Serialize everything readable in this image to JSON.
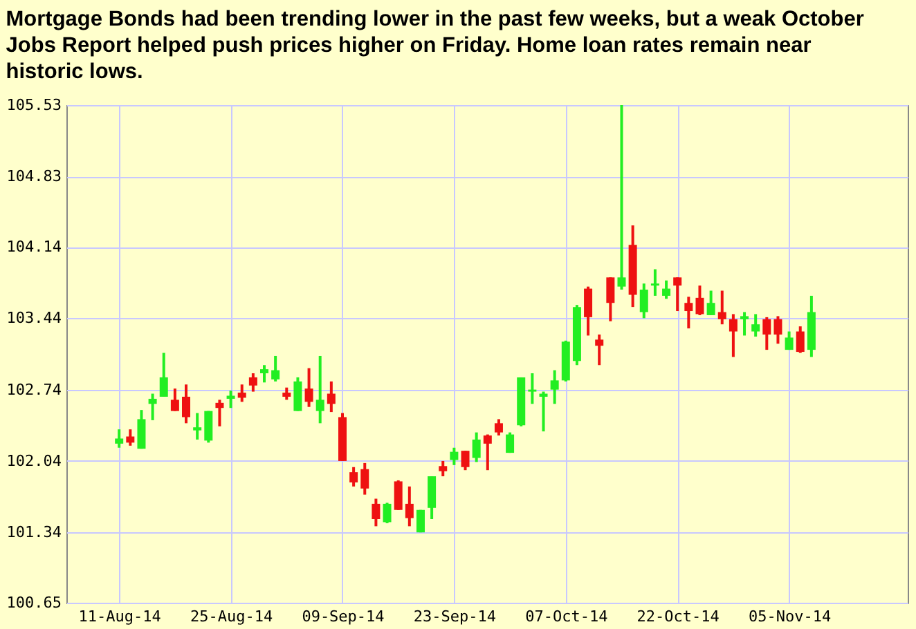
{
  "chart_data": {
    "type": "candlestick",
    "title": "Mortgage Bonds had been trending lower in the past few weeks, but a weak October Jobs Report helped push prices higher on Friday.  Home loan rates remain near historic lows.",
    "categories": [
      "11-Aug-14",
      null,
      null,
      null,
      null,
      null,
      null,
      null,
      null,
      null,
      "25-Aug-14",
      null,
      null,
      null,
      null,
      null,
      null,
      null,
      null,
      null,
      "09-Sep-14",
      null,
      null,
      null,
      null,
      null,
      null,
      null,
      null,
      null,
      "23-Sep-14",
      null,
      null,
      null,
      null,
      null,
      null,
      null,
      null,
      null,
      "07-Oct-14",
      null,
      null,
      null,
      null,
      null,
      null,
      null,
      null,
      null,
      "22-Oct-14",
      null,
      null,
      null,
      null,
      null,
      null,
      null,
      null,
      null,
      "05-Nov-14",
      null,
      null
    ],
    "ohlc": [
      [
        102.21,
        102.35,
        102.17,
        102.26
      ],
      [
        102.28,
        102.35,
        102.19,
        102.22
      ],
      [
        102.16,
        102.54,
        102.16,
        102.45
      ],
      [
        102.6,
        102.7,
        102.44,
        102.65
      ],
      [
        102.67,
        103.1,
        102.67,
        102.86
      ],
      [
        102.64,
        102.75,
        102.53,
        102.53
      ],
      [
        102.67,
        102.79,
        102.41,
        102.47
      ],
      [
        102.34,
        102.51,
        102.25,
        102.37
      ],
      [
        102.24,
        102.53,
        102.22,
        102.53
      ],
      [
        102.61,
        102.64,
        102.38,
        102.56
      ],
      [
        102.65,
        102.73,
        102.56,
        102.68
      ],
      [
        102.71,
        102.79,
        102.62,
        102.66
      ],
      [
        102.86,
        102.9,
        102.72,
        102.78
      ],
      [
        102.9,
        102.98,
        102.81,
        102.94
      ],
      [
        102.84,
        103.07,
        102.82,
        102.93
      ],
      [
        102.71,
        102.76,
        102.64,
        102.67
      ],
      [
        102.53,
        102.86,
        102.53,
        102.82
      ],
      [
        102.75,
        102.95,
        102.57,
        102.62
      ],
      [
        102.53,
        103.07,
        102.41,
        102.64
      ],
      [
        102.7,
        102.82,
        102.52,
        102.6
      ],
      [
        102.47,
        102.51,
        102.04,
        102.04
      ],
      [
        101.93,
        101.98,
        101.79,
        101.83
      ],
      [
        101.96,
        102.02,
        101.71,
        101.77
      ],
      [
        101.62,
        101.67,
        101.4,
        101.47
      ],
      [
        101.44,
        101.63,
        101.43,
        101.62
      ],
      [
        101.84,
        101.85,
        101.56,
        101.56
      ],
      [
        101.62,
        101.79,
        101.4,
        101.48
      ],
      [
        101.34,
        101.56,
        101.34,
        101.56
      ],
      [
        101.58,
        101.89,
        101.47,
        101.89
      ],
      [
        101.99,
        102.04,
        101.89,
        101.94
      ],
      [
        102.05,
        102.17,
        102.0,
        102.13
      ],
      [
        102.14,
        102.14,
        101.95,
        101.98
      ],
      [
        102.07,
        102.32,
        102.03,
        102.25
      ],
      [
        102.29,
        102.3,
        101.95,
        102.21
      ],
      [
        102.41,
        102.45,
        102.29,
        102.32
      ],
      [
        102.12,
        102.32,
        102.12,
        102.3
      ],
      [
        102.39,
        102.86,
        102.38,
        102.86
      ],
      [
        102.72,
        102.9,
        102.6,
        102.74
      ],
      [
        102.67,
        102.72,
        102.33,
        102.7
      ],
      [
        102.74,
        102.93,
        102.6,
        102.83
      ],
      [
        102.83,
        103.22,
        102.82,
        103.21
      ],
      [
        103.02,
        103.57,
        102.98,
        103.55
      ],
      [
        103.73,
        103.75,
        103.27,
        103.45
      ],
      [
        103.23,
        103.28,
        102.98,
        103.17
      ],
      [
        103.84,
        103.84,
        103.41,
        103.59
      ],
      [
        103.75,
        105.53,
        103.72,
        103.84
      ],
      [
        104.16,
        104.35,
        103.55,
        103.67
      ],
      [
        103.5,
        103.78,
        103.44,
        103.72
      ],
      [
        103.76,
        103.92,
        103.66,
        103.78
      ],
      [
        103.66,
        103.81,
        103.63,
        103.73
      ],
      [
        103.84,
        103.84,
        103.51,
        103.76
      ],
      [
        103.59,
        103.65,
        103.34,
        103.51
      ],
      [
        103.64,
        103.76,
        103.47,
        103.48
      ],
      [
        103.47,
        103.71,
        103.47,
        103.59
      ],
      [
        103.5,
        103.71,
        103.38,
        103.43
      ],
      [
        103.43,
        103.48,
        103.06,
        103.31
      ],
      [
        103.43,
        103.5,
        103.27,
        103.46
      ],
      [
        103.31,
        103.48,
        103.26,
        103.38
      ],
      [
        103.43,
        103.45,
        103.13,
        103.28
      ],
      [
        103.43,
        103.46,
        103.19,
        103.28
      ],
      [
        103.13,
        103.31,
        103.13,
        103.25
      ],
      [
        103.31,
        103.36,
        103.1,
        103.11
      ],
      [
        103.13,
        103.66,
        103.06,
        103.5
      ]
    ],
    "colors": [
      "#22ee22",
      "#ee1111",
      "#22ee22",
      "#22ee22",
      "#22ee22",
      "#ee1111",
      "#ee1111",
      "#22ee22",
      "#22ee22",
      "#ee1111",
      "#22ee22",
      "#ee1111",
      "#ee1111",
      "#22ee22",
      "#22ee22",
      "#ee1111",
      "#22ee22",
      "#ee1111",
      "#22ee22",
      "#ee1111",
      "#ee1111",
      "#ee1111",
      "#ee1111",
      "#ee1111",
      "#22ee22",
      "#ee1111",
      "#ee1111",
      "#22ee22",
      "#22ee22",
      "#ee1111",
      "#22ee22",
      "#ee1111",
      "#22ee22",
      "#ee1111",
      "#ee1111",
      "#22ee22",
      "#22ee22",
      "#22ee22",
      "#22ee22",
      "#22ee22",
      "#22ee22",
      "#22ee22",
      "#ee1111",
      "#ee1111",
      "#ee1111",
      "#22ee22",
      "#ee1111",
      "#22ee22",
      "#22ee22",
      "#22ee22",
      "#ee1111",
      "#ee1111",
      "#ee1111",
      "#22ee22",
      "#ee1111",
      "#ee1111",
      "#22ee22",
      "#22ee22",
      "#ee1111",
      "#ee1111",
      "#22ee22",
      "#ee1111",
      "#22ee22"
    ],
    "ylim": [
      100.65,
      105.53
    ],
    "yticks": [
      100.65,
      101.34,
      102.04,
      102.74,
      103.44,
      104.14,
      104.83,
      105.53
    ],
    "grid": true
  }
}
